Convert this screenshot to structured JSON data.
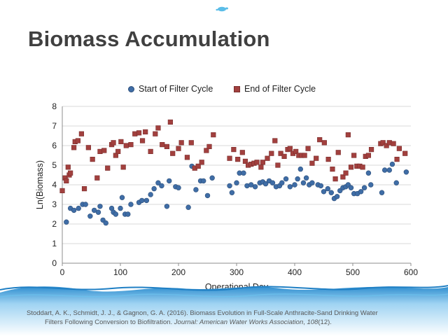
{
  "slide": {
    "title": "Biomass Accumulation",
    "citation": {
      "line1": "Stoddart, A. K., Schmidt, J. J., & Gagnon, G. A. (2016). Biomass Evolution in Full-Scale Anthracite-Sand Drinking Water",
      "line2_plain": "Filters Following Conversion to Biofiltration.",
      "journal": "Journal: American Water Works Association",
      "sep": ",",
      "volume": "108",
      "issue": "(12)."
    }
  },
  "colors": {
    "start_marker": "#3f6da6",
    "end_marker": "#a2403e",
    "water": "#4aa3d9"
  },
  "chart_data": {
    "type": "scatter",
    "xlabel": "Operational Day",
    "ylabel": "Ln(Biomass)",
    "xlim": [
      0,
      600
    ],
    "ylim": [
      0,
      8
    ],
    "xticks": [
      "0",
      "100",
      "200",
      "300",
      "400",
      "500",
      "600"
    ],
    "yticks": [
      "0",
      "1",
      "2",
      "3",
      "4",
      "5",
      "6",
      "7",
      "8"
    ],
    "grid": true,
    "legend_position": "top",
    "series": [
      {
        "name": "Start of Filter Cycle",
        "marker": "circle",
        "points": [
          [
            7,
            2.1
          ],
          [
            14,
            2.8
          ],
          [
            20,
            2.7
          ],
          [
            28,
            2.8
          ],
          [
            35,
            3.0
          ],
          [
            40,
            3.0
          ],
          [
            48,
            2.4
          ],
          [
            55,
            2.7
          ],
          [
            62,
            2.6
          ],
          [
            65,
            2.9
          ],
          [
            70,
            2.2
          ],
          [
            75,
            2.05
          ],
          [
            85,
            2.8
          ],
          [
            88,
            2.6
          ],
          [
            92,
            2.5
          ],
          [
            100,
            2.8
          ],
          [
            103,
            3.35
          ],
          [
            108,
            2.5
          ],
          [
            113,
            2.5
          ],
          [
            118,
            3.0
          ],
          [
            132,
            3.1
          ],
          [
            137,
            3.2
          ],
          [
            145,
            3.2
          ],
          [
            152,
            3.5
          ],
          [
            158,
            3.8
          ],
          [
            165,
            4.1
          ],
          [
            171,
            3.95
          ],
          [
            180,
            2.9
          ],
          [
            184,
            4.2
          ],
          [
            195,
            3.9
          ],
          [
            200,
            3.85
          ],
          [
            217,
            2.85
          ],
          [
            223,
            4.95
          ],
          [
            230,
            3.75
          ],
          [
            238,
            4.2
          ],
          [
            243,
            4.2
          ],
          [
            250,
            3.45
          ],
          [
            258,
            4.35
          ],
          [
            288,
            3.95
          ],
          [
            292,
            3.6
          ],
          [
            300,
            4.1
          ],
          [
            305,
            4.6
          ],
          [
            312,
            4.6
          ],
          [
            318,
            3.95
          ],
          [
            325,
            4.0
          ],
          [
            332,
            3.9
          ],
          [
            340,
            4.1
          ],
          [
            345,
            4.15
          ],
          [
            350,
            4.05
          ],
          [
            356,
            4.2
          ],
          [
            362,
            4.1
          ],
          [
            368,
            3.9
          ],
          [
            374,
            3.95
          ],
          [
            378,
            4.1
          ],
          [
            385,
            4.3
          ],
          [
            392,
            3.9
          ],
          [
            400,
            4.0
          ],
          [
            405,
            4.3
          ],
          [
            410,
            4.8
          ],
          [
            415,
            4.1
          ],
          [
            420,
            4.35
          ],
          [
            425,
            4.0
          ],
          [
            430,
            4.1
          ],
          [
            440,
            4.0
          ],
          [
            445,
            3.95
          ],
          [
            450,
            3.65
          ],
          [
            457,
            3.8
          ],
          [
            463,
            3.6
          ],
          [
            468,
            3.3
          ],
          [
            473,
            3.4
          ],
          [
            478,
            3.7
          ],
          [
            483,
            3.85
          ],
          [
            488,
            3.9
          ],
          [
            492,
            4.0
          ],
          [
            497,
            3.85
          ],
          [
            502,
            3.55
          ],
          [
            508,
            3.55
          ],
          [
            514,
            3.65
          ],
          [
            520,
            3.85
          ],
          [
            527,
            4.6
          ],
          [
            531,
            4.0
          ],
          [
            550,
            3.6
          ],
          [
            555,
            4.75
          ],
          [
            563,
            4.75
          ],
          [
            568,
            5.05
          ],
          [
            575,
            4.1
          ],
          [
            592,
            4.65
          ]
        ]
      },
      {
        "name": "End of Filter Cycle",
        "marker": "square",
        "points": [
          [
            0,
            3.7
          ],
          [
            5,
            4.35
          ],
          [
            7,
            4.2
          ],
          [
            10,
            4.9
          ],
          [
            12,
            4.5
          ],
          [
            14,
            4.6
          ],
          [
            20,
            5.9
          ],
          [
            22,
            6.2
          ],
          [
            27,
            6.25
          ],
          [
            33,
            6.6
          ],
          [
            38,
            3.8
          ],
          [
            45,
            5.9
          ],
          [
            52,
            5.3
          ],
          [
            60,
            4.35
          ],
          [
            65,
            5.7
          ],
          [
            72,
            5.75
          ],
          [
            78,
            4.85
          ],
          [
            85,
            6.05
          ],
          [
            88,
            6.15
          ],
          [
            92,
            5.5
          ],
          [
            96,
            5.7
          ],
          [
            101,
            6.2
          ],
          [
            105,
            4.9
          ],
          [
            110,
            6.0
          ],
          [
            118,
            6.05
          ],
          [
            125,
            6.6
          ],
          [
            132,
            6.65
          ],
          [
            138,
            6.25
          ],
          [
            143,
            6.7
          ],
          [
            152,
            5.7
          ],
          [
            160,
            6.6
          ],
          [
            165,
            6.9
          ],
          [
            172,
            6.05
          ],
          [
            180,
            5.95
          ],
          [
            186,
            7.2
          ],
          [
            190,
            5.6
          ],
          [
            200,
            5.85
          ],
          [
            205,
            6.15
          ],
          [
            215,
            5.4
          ],
          [
            222,
            6.15
          ],
          [
            228,
            4.85
          ],
          [
            234,
            4.95
          ],
          [
            240,
            5.15
          ],
          [
            248,
            5.75
          ],
          [
            253,
            5.95
          ],
          [
            260,
            6.55
          ],
          [
            288,
            5.35
          ],
          [
            295,
            5.8
          ],
          [
            302,
            5.3
          ],
          [
            310,
            5.65
          ],
          [
            315,
            5.2
          ],
          [
            320,
            5.0
          ],
          [
            325,
            5.05
          ],
          [
            330,
            5.1
          ],
          [
            335,
            5.15
          ],
          [
            342,
            4.9
          ],
          [
            345,
            5.15
          ],
          [
            353,
            5.35
          ],
          [
            360,
            5.6
          ],
          [
            366,
            6.25
          ],
          [
            371,
            5.0
          ],
          [
            376,
            5.6
          ],
          [
            382,
            5.45
          ],
          [
            388,
            5.8
          ],
          [
            392,
            5.85
          ],
          [
            397,
            5.6
          ],
          [
            402,
            5.7
          ],
          [
            407,
            5.5
          ],
          [
            412,
            5.5
          ],
          [
            417,
            5.5
          ],
          [
            423,
            5.85
          ],
          [
            430,
            5.1
          ],
          [
            437,
            5.35
          ],
          [
            443,
            6.3
          ],
          [
            451,
            6.15
          ],
          [
            458,
            5.3
          ],
          [
            465,
            4.8
          ],
          [
            470,
            4.3
          ],
          [
            475,
            5.65
          ],
          [
            483,
            4.4
          ],
          [
            488,
            4.6
          ],
          [
            492,
            6.55
          ],
          [
            497,
            4.9
          ],
          [
            502,
            5.5
          ],
          [
            507,
            4.95
          ],
          [
            512,
            4.95
          ],
          [
            517,
            4.9
          ],
          [
            522,
            5.45
          ],
          [
            527,
            5.5
          ],
          [
            532,
            5.8
          ],
          [
            548,
            6.1
          ],
          [
            552,
            6.15
          ],
          [
            558,
            6.0
          ],
          [
            563,
            6.15
          ],
          [
            570,
            6.1
          ],
          [
            576,
            5.3
          ],
          [
            580,
            5.85
          ],
          [
            590,
            5.6
          ]
        ]
      }
    ]
  }
}
